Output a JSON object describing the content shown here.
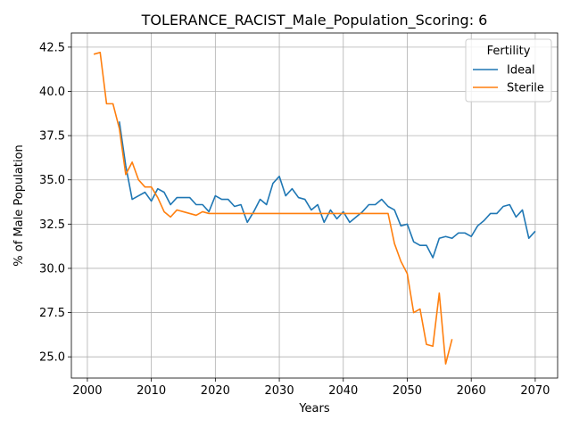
{
  "chart_data": {
    "type": "line",
    "title": "TOLERANCE_RACIST_Male_Population_Scoring: 6",
    "xlabel": "Years",
    "ylabel": "% of Male Population",
    "xlim": [
      1997.5,
      2073.5
    ],
    "ylim": [
      23.8,
      43.3
    ],
    "xticks": [
      2000,
      2010,
      2020,
      2030,
      2040,
      2050,
      2060,
      2070
    ],
    "yticks": [
      25.0,
      27.5,
      30.0,
      32.5,
      35.0,
      37.5,
      40.0,
      42.5
    ],
    "ytick_labels": [
      "25.0",
      "27.5",
      "30.0",
      "32.5",
      "35.0",
      "37.5",
      "40.0",
      "42.5"
    ],
    "grid": true,
    "legend": {
      "title": "Fertility",
      "placement": "top-right"
    },
    "series": [
      {
        "name": "Ideal",
        "color": "#1f77b4",
        "x": [
          2005,
          2006,
          2007,
          2008,
          2009,
          2010,
          2011,
          2012,
          2013,
          2014,
          2015,
          2016,
          2017,
          2018,
          2019,
          2020,
          2021,
          2022,
          2023,
          2024,
          2025,
          2026,
          2027,
          2028,
          2029,
          2030,
          2031,
          2032,
          2033,
          2034,
          2035,
          2036,
          2037,
          2038,
          2039,
          2040,
          2041,
          2042,
          2043,
          2044,
          2045,
          2046,
          2047,
          2048,
          2049,
          2050,
          2051,
          2052,
          2053,
          2054,
          2055,
          2056,
          2057,
          2058,
          2059,
          2060,
          2061,
          2062,
          2063,
          2064,
          2065,
          2066,
          2067,
          2068,
          2069,
          2070
        ],
        "values": [
          38.3,
          35.8,
          33.9,
          34.1,
          34.3,
          33.8,
          34.5,
          34.3,
          33.6,
          34.0,
          34.0,
          34.0,
          33.6,
          33.6,
          33.2,
          34.1,
          33.9,
          33.9,
          33.5,
          33.6,
          32.6,
          33.2,
          33.9,
          33.6,
          34.8,
          35.2,
          34.1,
          34.5,
          34.0,
          33.9,
          33.3,
          33.6,
          32.6,
          33.3,
          32.8,
          33.2,
          32.6,
          32.9,
          33.2,
          33.6,
          33.6,
          33.9,
          33.5,
          33.3,
          32.4,
          32.5,
          31.5,
          31.3,
          31.3,
          30.6,
          31.7,
          31.8,
          31.7,
          32.0,
          32.0,
          31.8,
          32.4,
          32.7,
          33.1,
          33.1,
          33.5,
          33.6,
          32.9,
          33.3,
          31.7,
          32.1
        ]
      },
      {
        "name": "Sterile",
        "color": "#ff7f0e",
        "x": [
          2001,
          2002,
          2003,
          2004,
          2005,
          2006,
          2007,
          2008,
          2009,
          2010,
          2011,
          2012,
          2013,
          2014,
          2015,
          2016,
          2017,
          2018,
          2019,
          2020,
          2021,
          2022,
          2023,
          2024,
          2025,
          2026,
          2027,
          2028,
          2029,
          2030,
          2031,
          2032,
          2033,
          2034,
          2035,
          2036,
          2037,
          2038,
          2039,
          2040,
          2041,
          2042,
          2043,
          2044,
          2045,
          2046,
          2047,
          2048,
          2049,
          2050,
          2051,
          2052,
          2053,
          2054,
          2055,
          2056,
          2057
        ],
        "values": [
          42.1,
          42.2,
          39.3,
          39.3,
          37.9,
          35.3,
          36.0,
          35.0,
          34.6,
          34.6,
          34.0,
          33.2,
          32.9,
          33.3,
          33.2,
          33.1,
          33.0,
          33.2,
          33.1,
          33.1,
          33.1,
          33.1,
          33.1,
          33.1,
          33.1,
          33.1,
          33.1,
          33.1,
          33.1,
          33.1,
          33.1,
          33.1,
          33.1,
          33.1,
          33.1,
          33.1,
          33.1,
          33.1,
          33.1,
          33.1,
          33.1,
          33.1,
          33.1,
          33.1,
          33.1,
          33.1,
          33.1,
          31.4,
          30.4,
          29.7,
          27.5,
          27.7,
          25.7,
          25.6,
          28.6,
          24.6,
          26.0
        ]
      }
    ]
  }
}
